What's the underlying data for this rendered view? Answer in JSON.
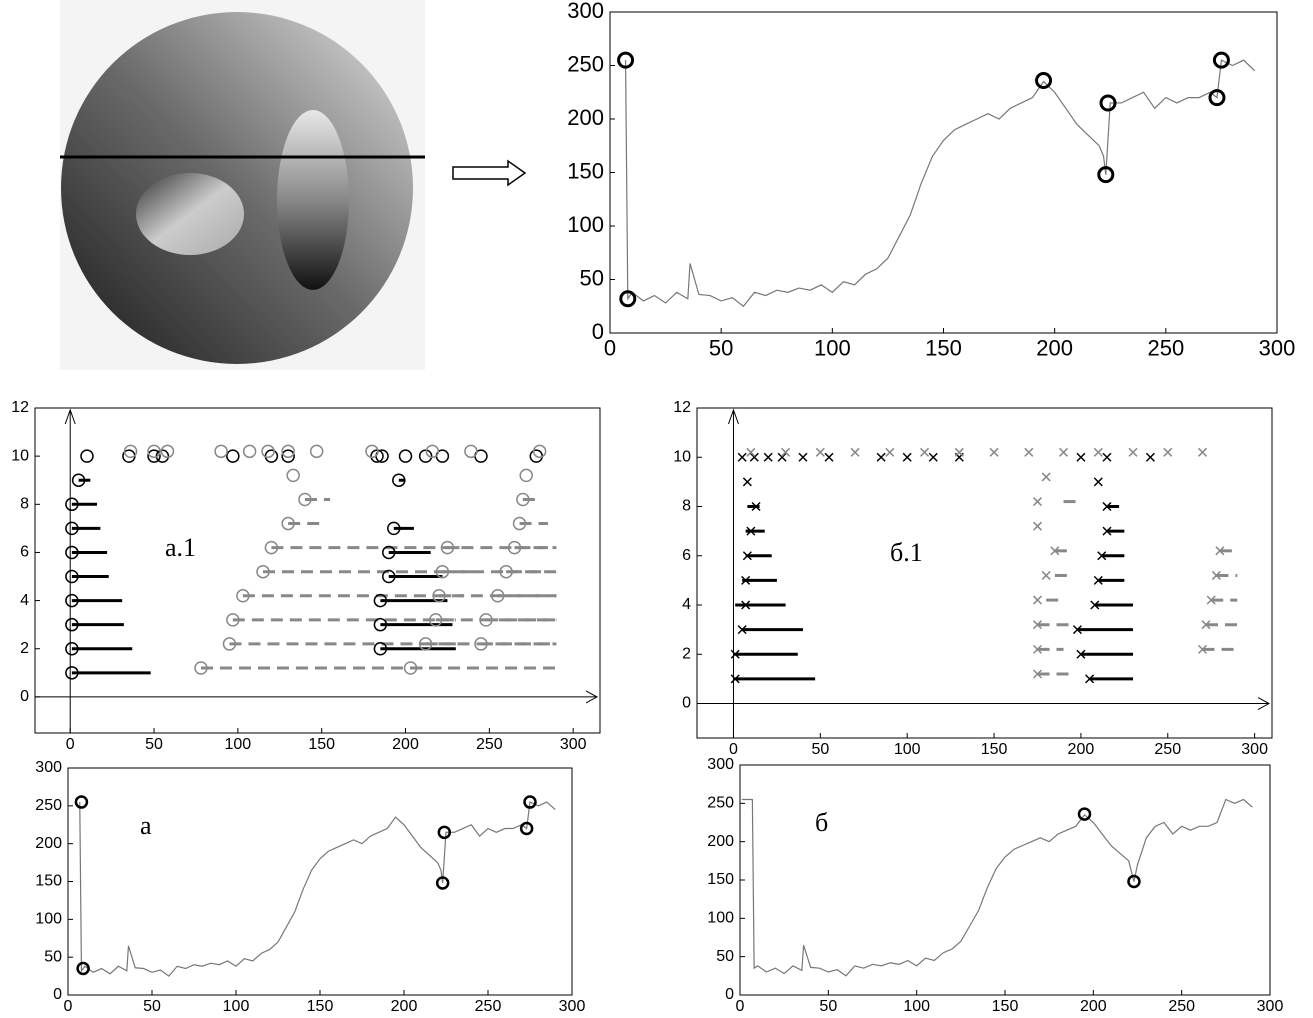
{
  "chart_data": [
    {
      "type": "line",
      "xlim": [
        0,
        300
      ],
      "ylim": [
        0,
        300
      ],
      "xticks": [
        0,
        50,
        100,
        150,
        200,
        250,
        300
      ],
      "yticks": [
        0,
        50,
        100,
        150,
        200,
        250,
        300
      ],
      "series": [
        {
          "mode": "line",
          "color": "#777777",
          "x": [
            7,
            8,
            10,
            15,
            20,
            25,
            30,
            35,
            36,
            40,
            45,
            50,
            55,
            60,
            65,
            70,
            75,
            80,
            85,
            90,
            95,
            100,
            105,
            110,
            115,
            120,
            125,
            130,
            135,
            140,
            145,
            150,
            155,
            160,
            165,
            170,
            175,
            180,
            185,
            190,
            195,
            200,
            205,
            210,
            215,
            220,
            222,
            223,
            225,
            230,
            235,
            240,
            245,
            250,
            255,
            260,
            265,
            270,
            273,
            275,
            280,
            285,
            290
          ],
          "values": [
            255,
            32,
            38,
            30,
            35,
            28,
            38,
            32,
            65,
            36,
            35,
            30,
            33,
            25,
            38,
            35,
            40,
            38,
            42,
            40,
            45,
            38,
            48,
            45,
            55,
            60,
            70,
            90,
            110,
            140,
            165,
            180,
            190,
            195,
            200,
            205,
            200,
            210,
            215,
            220,
            235,
            225,
            210,
            195,
            185,
            175,
            165,
            148,
            215,
            215,
            220,
            225,
            210,
            220,
            215,
            220,
            220,
            225,
            220,
            255,
            250,
            255,
            245
          ]
        },
        {
          "mode": "markers",
          "marker": "o",
          "color": "#000000",
          "x": [
            7,
            8,
            195,
            223,
            224,
            273,
            275
          ],
          "values": [
            255,
            32,
            236,
            148,
            215,
            220,
            255
          ]
        }
      ]
    },
    {
      "type": "scatter",
      "annotation": "а.1",
      "xlim": [
        -21,
        316
      ],
      "ylim": [
        -1.5,
        12
      ],
      "xticks": [
        0,
        50,
        100,
        150,
        200,
        250,
        300
      ],
      "yticks": [
        0,
        2,
        4,
        6,
        8,
        10,
        12
      ],
      "axis_arrows": true,
      "series": [
        {
          "mode": "segments",
          "color": "#000000",
          "dash": false,
          "x": [
            1,
            1,
            1,
            1,
            1,
            1,
            1,
            1,
            5,
            185,
            185,
            185,
            190,
            190,
            193,
            196
          ],
          "x_end": [
            48,
            37,
            32,
            31,
            23,
            22,
            18,
            16,
            12,
            230,
            228,
            225,
            222,
            215,
            205,
            200
          ],
          "values": [
            1,
            2,
            3,
            4,
            5,
            6,
            7,
            8,
            9,
            2,
            3,
            4,
            5,
            6,
            7,
            9
          ]
        },
        {
          "mode": "segments",
          "color": "#888888",
          "dash": true,
          "x": [
            78,
            95,
            97,
            103,
            115,
            120,
            130,
            140,
            203,
            212,
            218,
            220,
            222,
            225,
            245,
            248,
            255,
            260,
            265,
            268,
            270
          ],
          "x_end": [
            290,
            290,
            290,
            290,
            285,
            285,
            150,
            155,
            230,
            230,
            230,
            235,
            240,
            235,
            290,
            290,
            290,
            290,
            290,
            285,
            280
          ],
          "values": [
            1.2,
            2.2,
            3.2,
            4.2,
            5.2,
            6.2,
            7.2,
            8.2,
            1.2,
            2.2,
            3.2,
            4.2,
            5.2,
            6.2,
            2.2,
            3.2,
            4.2,
            5.2,
            6.2,
            7.2,
            8.2
          ]
        },
        {
          "mode": "markers",
          "marker": "o",
          "color": "#000000",
          "x": [
            1,
            1,
            1,
            1,
            1,
            1,
            1,
            1,
            5,
            10,
            185,
            185,
            185,
            190,
            190,
            193,
            196,
            35,
            50,
            55,
            97,
            120,
            130,
            183,
            186,
            200,
            212,
            222,
            245,
            278
          ],
          "values": [
            1,
            2,
            3,
            4,
            5,
            6,
            7,
            8,
            9,
            10,
            2,
            3,
            4,
            5,
            6,
            7,
            9,
            10,
            10,
            10,
            10,
            10,
            10,
            10,
            10,
            10,
            10,
            10,
            10,
            10
          ]
        },
        {
          "mode": "markers",
          "marker": "o",
          "color": "#888888",
          "x": [
            78,
            95,
            97,
            103,
            115,
            120,
            130,
            140,
            133,
            203,
            212,
            218,
            220,
            222,
            225,
            245,
            248,
            255,
            260,
            265,
            268,
            270,
            272,
            36,
            50,
            58,
            90,
            107,
            118,
            130,
            147,
            180,
            216,
            239,
            280
          ],
          "values": [
            1.2,
            2.2,
            3.2,
            4.2,
            5.2,
            6.2,
            7.2,
            8.2,
            9.2,
            1.2,
            2.2,
            3.2,
            4.2,
            5.2,
            6.2,
            2.2,
            3.2,
            4.2,
            5.2,
            6.2,
            7.2,
            8.2,
            9.2,
            10.2,
            10.2,
            10.2,
            10.2,
            10.2,
            10.2,
            10.2,
            10.2,
            10.2,
            10.2,
            10.2,
            10.2
          ]
        }
      ]
    },
    {
      "type": "scatter",
      "annotation": "б.1",
      "xlim": [
        -21,
        310
      ],
      "ylim": [
        -1.4,
        12
      ],
      "xticks": [
        0,
        50,
        100,
        150,
        200,
        250,
        300
      ],
      "yticks": [
        0,
        2,
        4,
        6,
        8,
        10,
        12
      ],
      "axis_arrows": true,
      "series": [
        {
          "mode": "segments",
          "color": "#000000",
          "dash": false,
          "x": [
            1,
            1,
            5,
            1,
            5,
            7,
            7,
            8,
            205,
            200,
            198,
            208,
            210,
            212,
            215,
            215
          ],
          "x_end": [
            47,
            37,
            40,
            30,
            25,
            22,
            18,
            15,
            230,
            230,
            230,
            230,
            225,
            225,
            225,
            222
          ],
          "values": [
            1,
            2,
            3,
            4,
            5,
            6,
            7,
            8,
            1,
            2,
            3,
            4,
            5,
            6,
            7,
            8
          ]
        },
        {
          "mode": "segments",
          "color": "#888888",
          "dash": true,
          "x": [
            175,
            175,
            175,
            180,
            185,
            185,
            190,
            270,
            272,
            275,
            278,
            280
          ],
          "x_end": [
            195,
            190,
            195,
            190,
            195,
            195,
            200,
            290,
            290,
            290,
            290,
            290
          ],
          "values": [
            1.2,
            2.2,
            3.2,
            4.2,
            5.2,
            6.2,
            8.2,
            2.2,
            3.2,
            4.2,
            5.2,
            6.2
          ]
        },
        {
          "mode": "markers",
          "marker": "x",
          "color": "#000000",
          "x": [
            1,
            1,
            5,
            7,
            7,
            8,
            10,
            13,
            8,
            205,
            200,
            198,
            208,
            210,
            212,
            215,
            215,
            210,
            5,
            12,
            20,
            28,
            40,
            55,
            85,
            100,
            115,
            130,
            200,
            215,
            240
          ],
          "values": [
            1,
            2,
            3,
            4,
            5,
            6,
            7,
            8,
            9,
            1,
            2,
            3,
            4,
            5,
            6,
            7,
            8,
            9,
            10,
            10,
            10,
            10,
            10,
            10,
            10,
            10,
            10,
            10,
            10,
            10,
            10
          ]
        },
        {
          "mode": "markers",
          "marker": "x",
          "color": "#888888",
          "x": [
            175,
            175,
            175,
            175,
            180,
            185,
            175,
            175,
            180,
            270,
            272,
            275,
            278,
            280,
            10,
            30,
            50,
            70,
            90,
            110,
            130,
            150,
            170,
            190,
            210,
            230,
            250,
            270
          ],
          "values": [
            1.2,
            2.2,
            3.2,
            4.2,
            5.2,
            6.2,
            7.2,
            8.2,
            9.2,
            2.2,
            3.2,
            4.2,
            5.2,
            6.2,
            10.2,
            10.2,
            10.2,
            10.2,
            10.2,
            10.2,
            10.2,
            10.2,
            10.2,
            10.2,
            10.2,
            10.2,
            10.2,
            10.2
          ]
        }
      ]
    },
    {
      "type": "line",
      "annotation": "а",
      "xlim": [
        0,
        300
      ],
      "ylim": [
        0,
        300
      ],
      "xticks": [
        0,
        50,
        100,
        150,
        200,
        250,
        300
      ],
      "yticks": [
        0,
        50,
        100,
        150,
        200,
        250,
        300
      ],
      "series": [
        {
          "mode": "line",
          "color": "#777777",
          "x": [
            7,
            8,
            10,
            15,
            20,
            25,
            30,
            35,
            36,
            40,
            45,
            50,
            55,
            60,
            65,
            70,
            75,
            80,
            85,
            90,
            95,
            100,
            105,
            110,
            115,
            120,
            125,
            130,
            135,
            140,
            145,
            150,
            155,
            160,
            165,
            170,
            175,
            180,
            185,
            190,
            195,
            200,
            205,
            210,
            215,
            220,
            222,
            223,
            225,
            230,
            235,
            240,
            245,
            250,
            255,
            260,
            265,
            270,
            273,
            275,
            280,
            285,
            290
          ],
          "values": [
            255,
            32,
            38,
            30,
            35,
            28,
            38,
            32,
            65,
            36,
            35,
            30,
            33,
            25,
            38,
            35,
            40,
            38,
            42,
            40,
            45,
            38,
            48,
            45,
            55,
            60,
            70,
            90,
            110,
            140,
            165,
            180,
            190,
            195,
            200,
            205,
            200,
            210,
            215,
            220,
            235,
            225,
            210,
            195,
            185,
            175,
            165,
            148,
            215,
            215,
            220,
            225,
            210,
            220,
            215,
            220,
            220,
            225,
            220,
            255,
            250,
            255,
            245
          ]
        },
        {
          "mode": "markers",
          "marker": "o",
          "color": "#000000",
          "x": [
            8,
            9,
            223,
            224,
            273,
            275
          ],
          "values": [
            255,
            35,
            148,
            215,
            220,
            255
          ]
        }
      ]
    },
    {
      "type": "line",
      "annotation": "б",
      "xlim": [
        0,
        300
      ],
      "ylim": [
        0,
        300
      ],
      "xticks": [
        0,
        50,
        100,
        150,
        200,
        250,
        300
      ],
      "yticks": [
        0,
        50,
        100,
        150,
        200,
        250,
        300
      ],
      "series": [
        {
          "mode": "line",
          "color": "#777777",
          "x": [
            1,
            7,
            8,
            10,
            15,
            20,
            25,
            30,
            35,
            36,
            40,
            45,
            50,
            55,
            60,
            65,
            70,
            75,
            80,
            85,
            90,
            95,
            100,
            105,
            110,
            115,
            120,
            125,
            130,
            135,
            140,
            145,
            150,
            155,
            160,
            165,
            170,
            175,
            180,
            185,
            190,
            195,
            200,
            205,
            210,
            215,
            220,
            223,
            225,
            230,
            235,
            240,
            245,
            250,
            255,
            260,
            265,
            270,
            275,
            280,
            285,
            290
          ],
          "values": [
            255,
            255,
            35,
            38,
            30,
            35,
            28,
            38,
            32,
            65,
            36,
            35,
            30,
            33,
            25,
            38,
            35,
            40,
            38,
            42,
            40,
            45,
            38,
            48,
            45,
            55,
            60,
            70,
            90,
            110,
            140,
            165,
            180,
            190,
            195,
            200,
            205,
            200,
            210,
            215,
            220,
            235,
            225,
            210,
            195,
            185,
            175,
            148,
            170,
            205,
            220,
            225,
            210,
            220,
            215,
            220,
            220,
            225,
            255,
            250,
            255,
            245
          ]
        },
        {
          "mode": "markers",
          "marker": "o",
          "color": "#000000",
          "x": [
            195,
            223
          ],
          "values": [
            236,
            148
          ]
        }
      ]
    }
  ]
}
